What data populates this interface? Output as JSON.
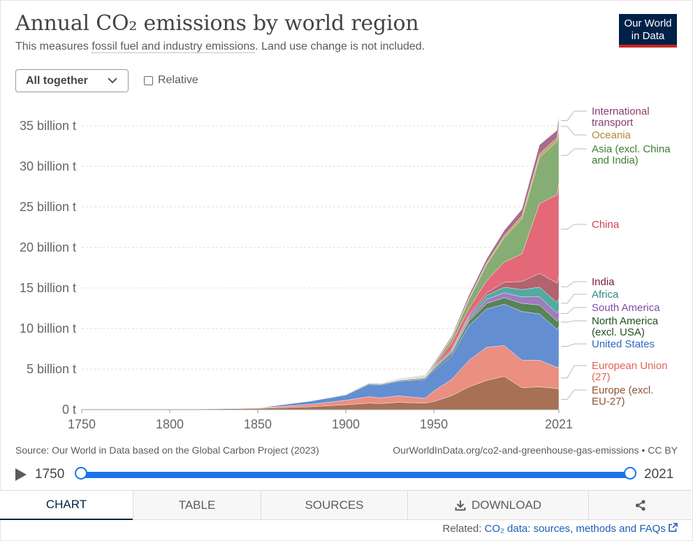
{
  "header": {
    "title": "Annual CO₂ emissions by world region",
    "subtitle_pre": "This measures ",
    "subtitle_link": "fossil fuel and industry emissions",
    "subtitle_post": ". Land use change is not included.",
    "logo_line1": "Our World",
    "logo_line2": "in Data"
  },
  "controls": {
    "dropdown_label": "All together",
    "relative_label": "Relative"
  },
  "colors": {
    "europe": "#a2694c",
    "eu27": "#e9897a",
    "usa": "#5b88d0",
    "north_america": "#4e7c4c",
    "south_america": "#9a74bd",
    "africa": "#4aa59b",
    "india": "#ad5b68",
    "china": "#e26171",
    "asia": "#7fa96c",
    "oceania": "#c2a15a",
    "transport": "#a2638a"
  },
  "chart_data": {
    "type": "area",
    "stacked": true,
    "title": "Annual CO₂ emissions by world region",
    "ylabel": "",
    "ylim": [
      0,
      37000000000
    ],
    "y_ticks": [
      0,
      5,
      10,
      15,
      20,
      25,
      30,
      35
    ],
    "y_tick_labels": [
      "0 t",
      "5 billion t",
      "10 billion t",
      "15 billion t",
      "20 billion t",
      "25 billion t",
      "30 billion t",
      "35 billion t"
    ],
    "x_ticks": [
      1750,
      1800,
      1850,
      1900,
      1950,
      2021
    ],
    "x_tick_labels": [
      "1750",
      "1800",
      "1850",
      "1900",
      "1950",
      "2021"
    ],
    "grid": true,
    "x": [
      1750,
      1800,
      1850,
      1880,
      1900,
      1913,
      1920,
      1930,
      1945,
      1950,
      1960,
      1970,
      1980,
      1990,
      2000,
      2010,
      2020,
      2021
    ],
    "series": [
      {
        "name": "Europe (excl. EU-27)",
        "key": "europe",
        "values": [
          0.01,
          0.03,
          0.15,
          0.35,
          0.6,
          0.8,
          0.75,
          0.9,
          0.8,
          1.0,
          1.7,
          2.8,
          3.6,
          4.1,
          2.7,
          2.8,
          2.6,
          2.5
        ]
      },
      {
        "name": "European Union (27)",
        "key": "eu27",
        "values": [
          0.0,
          0.01,
          0.05,
          0.3,
          0.55,
          0.8,
          0.7,
          0.8,
          0.6,
          1.3,
          2.0,
          3.3,
          4.1,
          3.8,
          3.4,
          3.3,
          2.6,
          2.8
        ]
      },
      {
        "name": "United States",
        "key": "usa",
        "values": [
          0.0,
          0.0,
          0.02,
          0.4,
          0.65,
          1.5,
          1.6,
          1.8,
          2.3,
          2.5,
          2.9,
          4.3,
          4.7,
          5.1,
          6.0,
          5.7,
          4.7,
          5.0
        ]
      },
      {
        "name": "North America (excl. USA)",
        "key": "north_america",
        "values": [
          0.0,
          0.0,
          0.0,
          0.02,
          0.05,
          0.1,
          0.1,
          0.1,
          0.15,
          0.2,
          0.3,
          0.5,
          0.7,
          0.8,
          1.0,
          1.1,
          1.0,
          1.0
        ]
      },
      {
        "name": "South America",
        "key": "south_america",
        "values": [
          0.0,
          0.0,
          0.0,
          0.0,
          0.02,
          0.03,
          0.03,
          0.05,
          0.07,
          0.1,
          0.2,
          0.3,
          0.5,
          0.6,
          0.8,
          1.0,
          1.0,
          1.1
        ]
      },
      {
        "name": "Africa",
        "key": "africa",
        "values": [
          0.0,
          0.0,
          0.0,
          0.0,
          0.01,
          0.02,
          0.02,
          0.03,
          0.05,
          0.1,
          0.15,
          0.3,
          0.5,
          0.7,
          0.9,
          1.2,
          1.3,
          1.4
        ]
      },
      {
        "name": "India",
        "key": "india",
        "values": [
          0.0,
          0.0,
          0.0,
          0.0,
          0.02,
          0.03,
          0.04,
          0.05,
          0.07,
          0.1,
          0.15,
          0.2,
          0.3,
          0.6,
          1.0,
          1.7,
          2.4,
          2.7
        ]
      },
      {
        "name": "China",
        "key": "china",
        "values": [
          0.0,
          0.0,
          0.0,
          0.0,
          0.0,
          0.01,
          0.01,
          0.02,
          0.05,
          0.08,
          0.8,
          0.8,
          1.5,
          2.5,
          3.4,
          8.6,
          10.9,
          11.5
        ]
      },
      {
        "name": "Asia (excl. China and India)",
        "key": "asia",
        "values": [
          0.0,
          0.0,
          0.0,
          0.0,
          0.01,
          0.03,
          0.04,
          0.06,
          0.08,
          0.2,
          0.5,
          1.1,
          2.0,
          3.0,
          4.3,
          5.7,
          6.6,
          6.7
        ]
      },
      {
        "name": "Oceania",
        "key": "oceania",
        "values": [
          0.0,
          0.0,
          0.0,
          0.01,
          0.01,
          0.02,
          0.02,
          0.03,
          0.04,
          0.05,
          0.1,
          0.15,
          0.2,
          0.3,
          0.4,
          0.45,
          0.45,
          0.45
        ]
      },
      {
        "name": "International transport",
        "key": "transport",
        "values": [
          0.0,
          0.0,
          0.0,
          0.0,
          0.0,
          0.01,
          0.01,
          0.02,
          0.05,
          0.1,
          0.2,
          0.4,
          0.5,
          0.6,
          0.8,
          1.1,
          0.9,
          1.0
        ]
      }
    ],
    "value_unit": "billion t",
    "legend_placement": "right",
    "legend_labels": [
      {
        "key": "transport",
        "lines": [
          "International",
          "transport"
        ]
      },
      {
        "key": "oceania",
        "lines": [
          "Oceania"
        ]
      },
      {
        "key": "asia",
        "lines": [
          "Asia (excl. China",
          "and India)"
        ]
      },
      {
        "key": "china",
        "lines": [
          "China"
        ]
      },
      {
        "key": "india",
        "lines": [
          "India"
        ]
      },
      {
        "key": "africa",
        "lines": [
          "Africa"
        ]
      },
      {
        "key": "south_america",
        "lines": [
          "South America"
        ]
      },
      {
        "key": "north_america",
        "lines": [
          "North America",
          "(excl. USA)"
        ]
      },
      {
        "key": "usa",
        "lines": [
          "United States"
        ]
      },
      {
        "key": "eu27",
        "lines": [
          "European Union",
          "(27)"
        ]
      },
      {
        "key": "europe",
        "lines": [
          "Europe (excl.",
          "EU-27)"
        ]
      }
    ]
  },
  "footer": {
    "source": "Source: Our World in Data based on the Global Carbon Project (2023)",
    "url_license": "OurWorldInData.org/co2-and-greenhouse-gas-emissions • CC BY",
    "related_label": "Related:",
    "related_link": "CO₂ data: sources, methods and FAQs"
  },
  "timeline": {
    "start_year": "1750",
    "end_year": "2021",
    "start_fraction": 0,
    "end_fraction": 1
  },
  "tabs": [
    {
      "label": "CHART",
      "name": "tab-chart",
      "active": true
    },
    {
      "label": "TABLE",
      "name": "tab-table",
      "active": false
    },
    {
      "label": "SOURCES",
      "name": "tab-sources",
      "active": false
    },
    {
      "label": "DOWNLOAD",
      "name": "tab-download",
      "active": false
    },
    {
      "label": "",
      "name": "tab-share",
      "active": false
    }
  ]
}
